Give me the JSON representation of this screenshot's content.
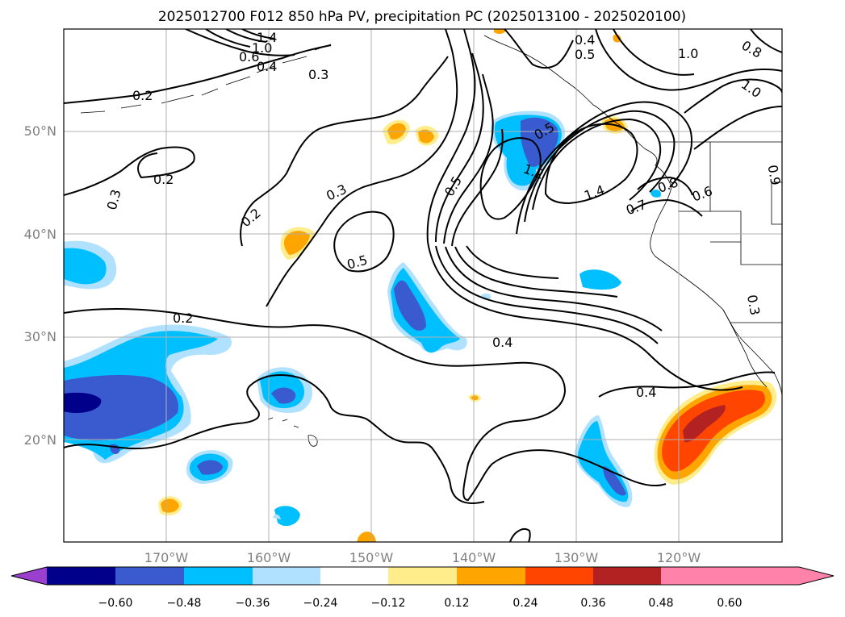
{
  "title": "2025012700 F012 850 hPa PV, precipitation PC (2025013100 - 2025020100)",
  "lat_labels": [
    "50°N",
    "40°N",
    "30°N",
    "20°N"
  ],
  "lon_labels": [
    "170°W",
    "160°W",
    "150°W",
    "140°W",
    "130°W",
    "120°W"
  ],
  "contour_labels": [
    {
      "text": "1.4"
    },
    {
      "text": "1.0"
    },
    {
      "text": "0.6"
    },
    {
      "text": "0.4"
    },
    {
      "text": "0.3"
    },
    {
      "text": "0.2"
    },
    {
      "text": "0.2"
    },
    {
      "text": "0.3"
    },
    {
      "text": "0.2"
    },
    {
      "text": "0.3"
    },
    {
      "text": "0.5"
    },
    {
      "text": "0.5"
    },
    {
      "text": "0.5"
    },
    {
      "text": "1.2"
    },
    {
      "text": "1.4"
    },
    {
      "text": "0.7"
    },
    {
      "text": "0.8"
    },
    {
      "text": "0.6"
    },
    {
      "text": "0.4"
    },
    {
      "text": "0.5"
    },
    {
      "text": "1.0"
    },
    {
      "text": "0.8"
    },
    {
      "text": "1.0"
    },
    {
      "text": "0.2"
    },
    {
      "text": "0.4"
    },
    {
      "text": "0.4"
    },
    {
      "text": "0.3"
    },
    {
      "text": "0.9"
    }
  ],
  "colorbar": {
    "ticks": [
      "−0.60",
      "−0.48",
      "−0.36",
      "−0.24",
      "−0.12",
      "0.12",
      "0.24",
      "0.36",
      "0.48",
      "0.60"
    ],
    "colors": [
      "#9b3fcf",
      "#00008b",
      "#3a5bcf",
      "#00bfff",
      "#b0e2ff",
      "#ffffff",
      "#ffec8b",
      "#ffa500",
      "#ff4500",
      "#b22222",
      "#ff82ab"
    ]
  },
  "colors": {
    "neg_light": "#b0e2ff",
    "neg_mid": "#00bfff",
    "neg_strong": "#3a5bcf",
    "neg_max": "#00008b",
    "pos_light": "#ffec8b",
    "pos_mid": "#ffa500",
    "pos_strong": "#ff4500",
    "pos_max": "#b22222",
    "grid": "#b0b0b0",
    "contour": "#000000"
  }
}
